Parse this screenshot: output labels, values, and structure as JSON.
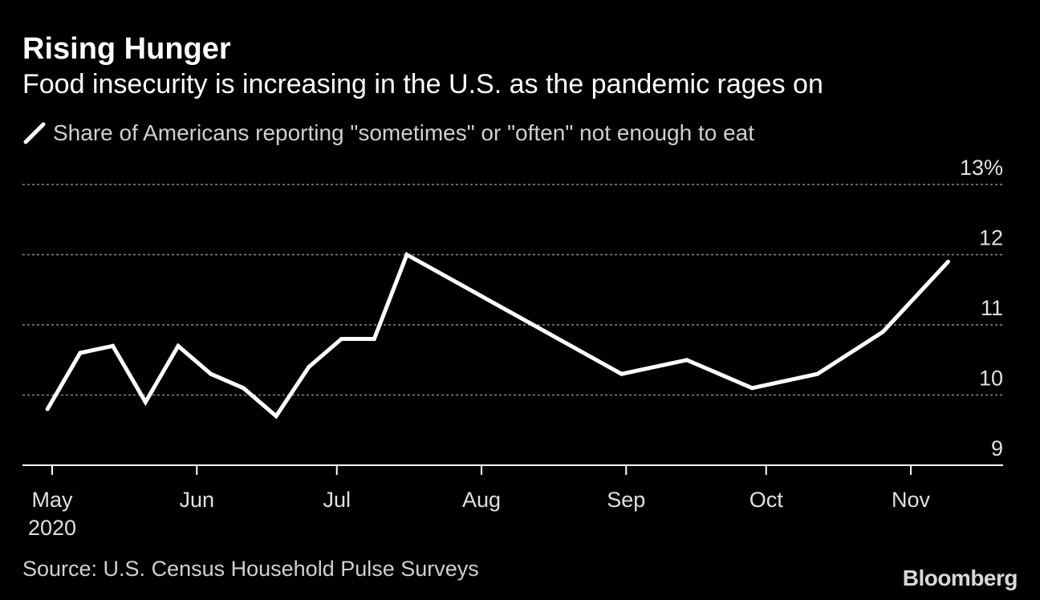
{
  "chart_data": {
    "type": "line",
    "title": "Rising Hunger",
    "subtitle": "Food insecurity is increasing in the U.S. as the pandemic rages on",
    "legend": [
      {
        "name": "Share of Americans reporting \"sometimes\" or \"often\" not enough to eat",
        "color": "#ffffff"
      }
    ],
    "ylim": [
      9,
      13
    ],
    "y_ticks": [
      {
        "value": 9,
        "label": "9"
      },
      {
        "value": 10,
        "label": "10"
      },
      {
        "value": 11,
        "label": "11"
      },
      {
        "value": 12,
        "label": "12"
      },
      {
        "value": 13,
        "label": "13%"
      }
    ],
    "x_ticks": [
      {
        "date": "2020-05-01",
        "label": "May",
        "sublabel": "2020"
      },
      {
        "date": "2020-06-01",
        "label": "Jun"
      },
      {
        "date": "2020-07-01",
        "label": "Jul"
      },
      {
        "date": "2020-08-01",
        "label": "Aug"
      },
      {
        "date": "2020-09-01",
        "label": "Sep"
      },
      {
        "date": "2020-10-01",
        "label": "Oct"
      },
      {
        "date": "2020-11-01",
        "label": "Nov"
      }
    ],
    "series": [
      {
        "name": "Share of Americans reporting \"sometimes\" or \"often\" not enough to eat",
        "points": [
          {
            "date": "2020-04-30",
            "value": 9.8
          },
          {
            "date": "2020-05-07",
            "value": 10.6
          },
          {
            "date": "2020-05-14",
            "value": 10.7
          },
          {
            "date": "2020-05-21",
            "value": 9.9
          },
          {
            "date": "2020-05-28",
            "value": 10.7
          },
          {
            "date": "2020-06-04",
            "value": 10.3
          },
          {
            "date": "2020-06-11",
            "value": 10.1
          },
          {
            "date": "2020-06-18",
            "value": 9.7
          },
          {
            "date": "2020-06-25",
            "value": 10.4
          },
          {
            "date": "2020-07-02",
            "value": 10.8
          },
          {
            "date": "2020-07-09",
            "value": 10.8
          },
          {
            "date": "2020-07-16",
            "value": 12.0
          },
          {
            "date": "2020-08-31",
            "value": 10.3
          },
          {
            "date": "2020-09-14",
            "value": 10.5
          },
          {
            "date": "2020-09-28",
            "value": 10.1
          },
          {
            "date": "2020-10-12",
            "value": 10.3
          },
          {
            "date": "2020-10-26",
            "value": 10.9
          },
          {
            "date": "2020-11-09",
            "value": 11.9
          }
        ]
      }
    ],
    "source": "Source: U.S. Census Household Pulse Surveys",
    "brand": "Bloomberg"
  }
}
